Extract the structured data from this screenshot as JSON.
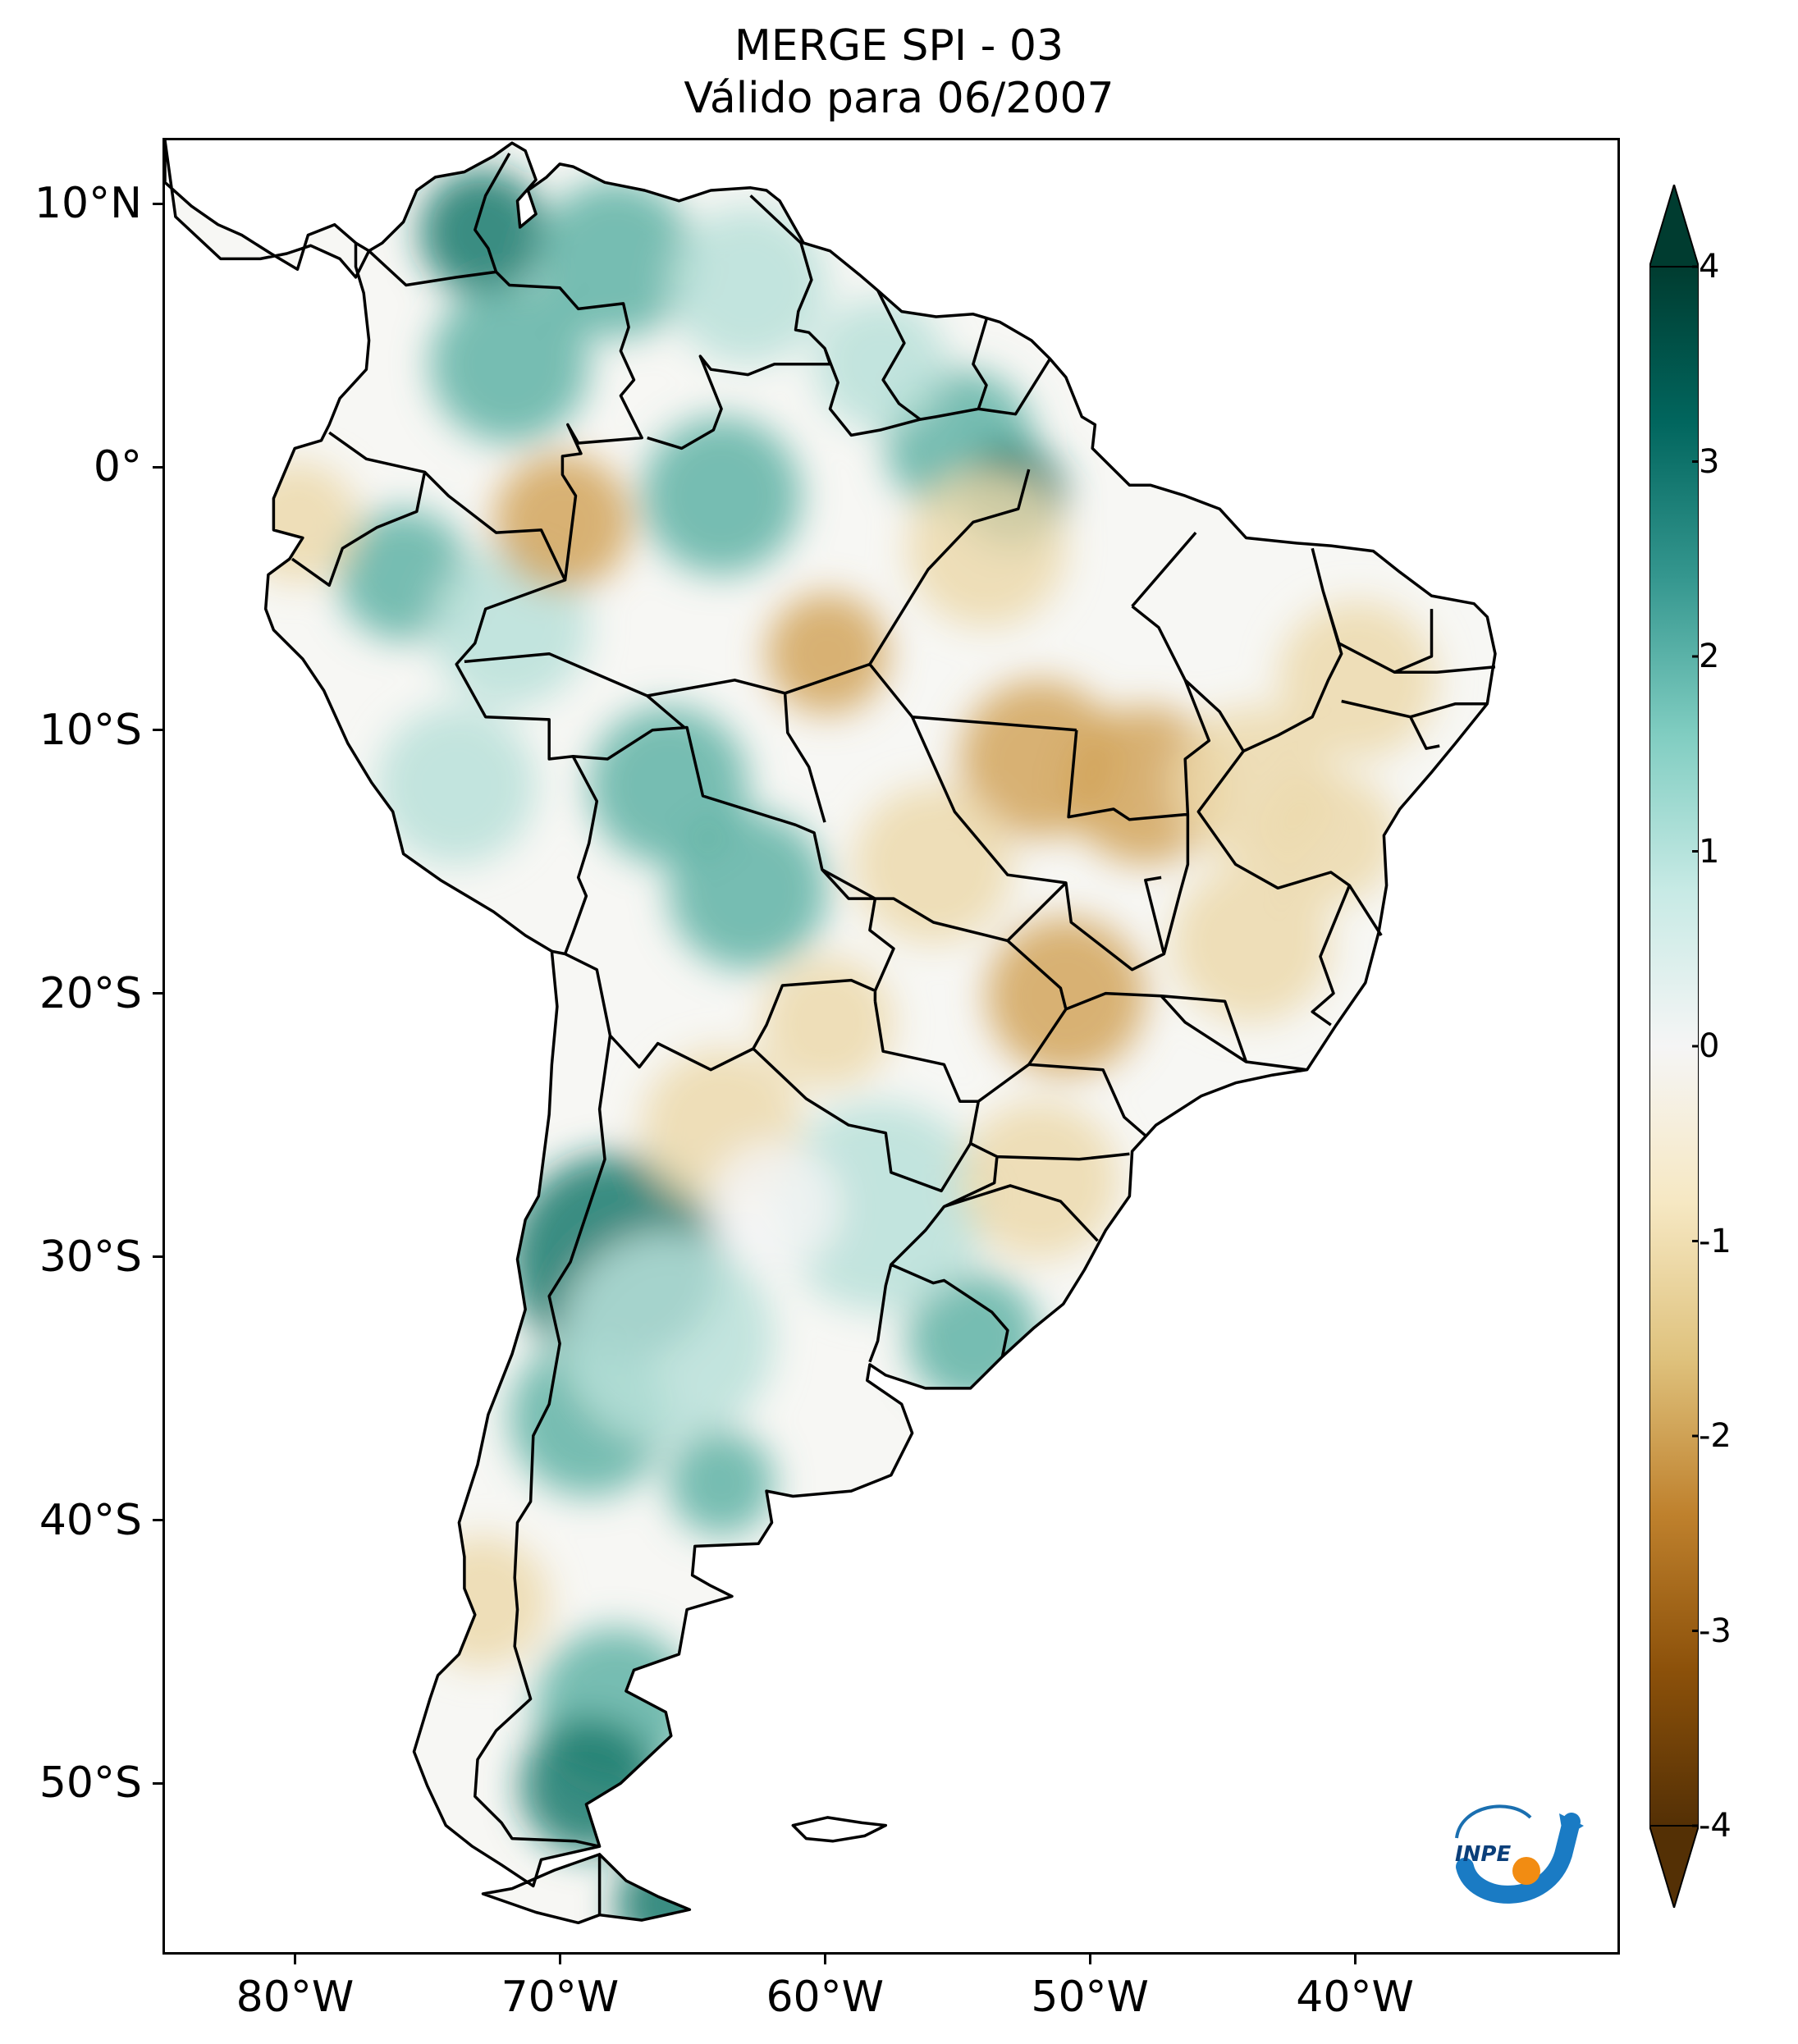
{
  "title": {
    "line1": "MERGE   SPI - 03",
    "line2": "Válido para 06/2007"
  },
  "axes": {
    "lat_labels": [
      "10°N",
      "0°",
      "10°S",
      "20°S",
      "30°S",
      "40°S",
      "50°S"
    ],
    "lat_values": [
      10,
      0,
      -10,
      -20,
      -30,
      -40,
      -50
    ],
    "lon_labels": [
      "80°W",
      "70°W",
      "60°W",
      "50°W",
      "40°W"
    ],
    "lon_values": [
      -80,
      -70,
      -60,
      -50,
      -40
    ],
    "lat_range": [
      -56.5,
      12.5
    ],
    "lon_range": [
      -85,
      -30
    ]
  },
  "colorbar": {
    "labels": [
      "4",
      "3",
      "2",
      "1",
      "0",
      "-1",
      "-2",
      "-3",
      "-4"
    ],
    "values": [
      4,
      3,
      2,
      1,
      0,
      -1,
      -2,
      -3,
      -4
    ],
    "range": [
      -4,
      4
    ],
    "extend": "both",
    "colors_top_to_bottom": [
      "#003c30",
      "#01665e",
      "#35978f",
      "#80cdc1",
      "#c7eae5",
      "#f5f5f5",
      "#f6e8c3",
      "#dfc27d",
      "#bf812d",
      "#8c510a",
      "#543005"
    ]
  },
  "logo": {
    "text": "INPE"
  },
  "colors": {
    "wet_strong": "#1b7a6c",
    "wet_medium": "#5fb3a6",
    "wet_light": "#b9e1d9",
    "neutral": "#f5f5f5",
    "dry_light": "#ecd9ad",
    "dry_medium": "#d2a45c",
    "outline": "#000000"
  }
}
